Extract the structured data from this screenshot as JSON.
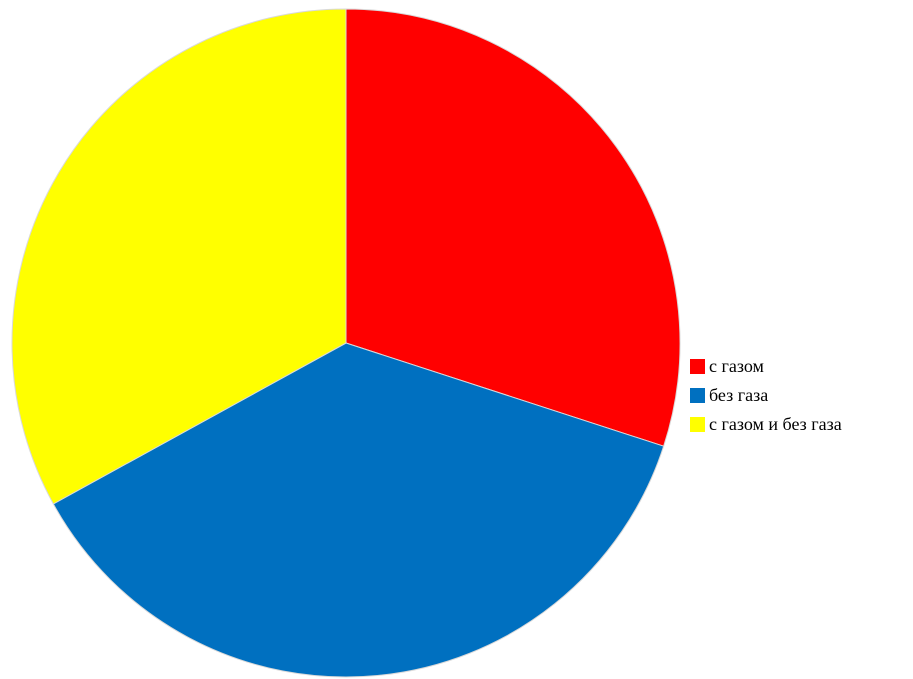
{
  "chart_data": {
    "type": "pie",
    "title": "",
    "categories": [
      "с газом",
      "без газа",
      "с газом и без газа"
    ],
    "values": [
      30,
      37,
      33
    ],
    "colors": [
      "#FF0000",
      "#0070C0",
      "#FFFF00"
    ],
    "legend_position": "right"
  }
}
